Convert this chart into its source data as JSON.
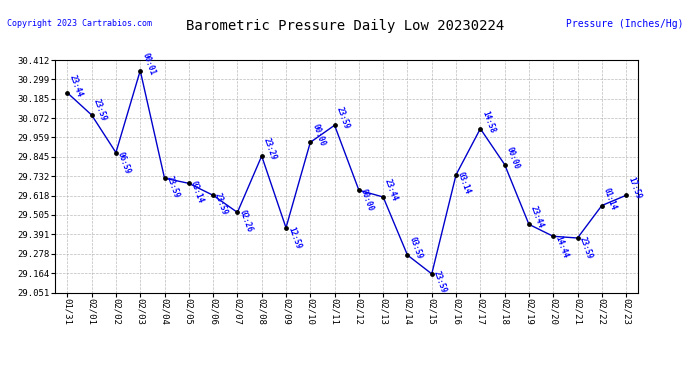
{
  "title": "Barometric Pressure Daily Low 20230224",
  "ylabel": "Pressure (Inches/Hg)",
  "copyright": "Copyright 2023 Cartrabios.com",
  "x_labels": [
    "01/31",
    "02/01",
    "02/02",
    "02/03",
    "02/04",
    "02/05",
    "02/06",
    "02/07",
    "02/08",
    "02/09",
    "02/10",
    "02/11",
    "02/12",
    "02/13",
    "02/14",
    "02/15",
    "02/16",
    "02/17",
    "02/18",
    "02/19",
    "02/20",
    "02/21",
    "02/22",
    "02/23"
  ],
  "y_values": [
    30.22,
    30.09,
    29.87,
    30.35,
    29.72,
    29.69,
    29.62,
    29.52,
    29.85,
    29.43,
    29.93,
    30.03,
    29.65,
    29.61,
    29.27,
    29.16,
    29.74,
    30.01,
    29.8,
    29.45,
    29.38,
    29.37,
    29.56,
    29.62
  ],
  "label_list": [
    "23:44",
    "23:59",
    "06:59",
    "00:01",
    "23:59",
    "03:14",
    "23:59",
    "02:26",
    "23:29",
    "12:59",
    "00:00",
    "23:59",
    "00:00",
    "23:44",
    "03:59",
    "23:59",
    "03:14",
    "14:58",
    "00:00",
    "23:44",
    "14:44",
    "23:59",
    "01:14",
    "17:59"
  ],
  "ylim_min": 29.051,
  "ylim_max": 30.412,
  "yticks": [
    29.051,
    29.164,
    29.278,
    29.391,
    29.505,
    29.618,
    29.732,
    29.845,
    29.959,
    30.072,
    30.185,
    30.299,
    30.412
  ],
  "line_color": "#0000cc",
  "marker_color": "#000000",
  "label_color": "#0000ff",
  "bg_color": "#ffffff",
  "grid_color": "#aaaaaa",
  "title_color": "#000000",
  "ylabel_color": "#0000ff",
  "copyright_color": "#0000ff"
}
